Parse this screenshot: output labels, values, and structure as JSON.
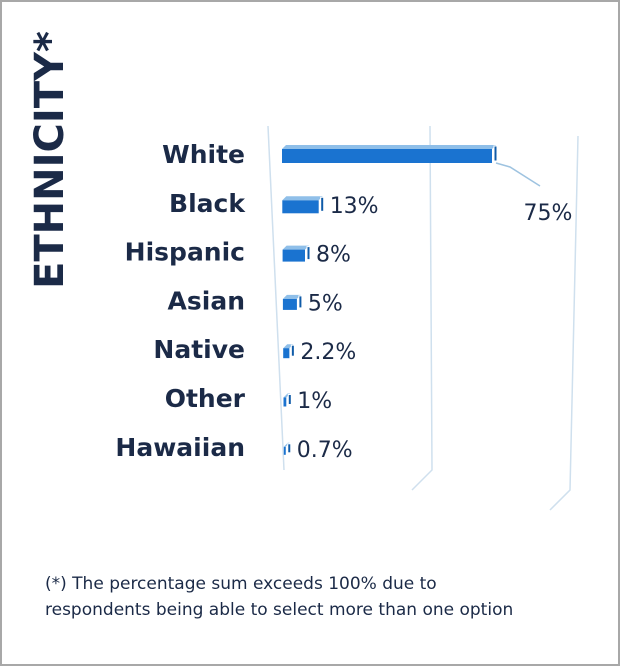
{
  "chart_data": {
    "type": "bar",
    "orientation": "horizontal",
    "title": "ETHNICITY*",
    "categories": [
      "White",
      "Black",
      "Hispanic",
      "Asian",
      "Native",
      "Other",
      "Hawaiian"
    ],
    "values": [
      75,
      13,
      8,
      5,
      2.2,
      1,
      0.7
    ],
    "value_labels": [
      "75%",
      "13%",
      "8%",
      "5%",
      "2.2%",
      "1%",
      "0.7%"
    ],
    "color": "#1a73d0",
    "footnote": [
      "(*) The percentage sum exceeds 100% due to",
      "respondents being able to select more than one option"
    ]
  }
}
